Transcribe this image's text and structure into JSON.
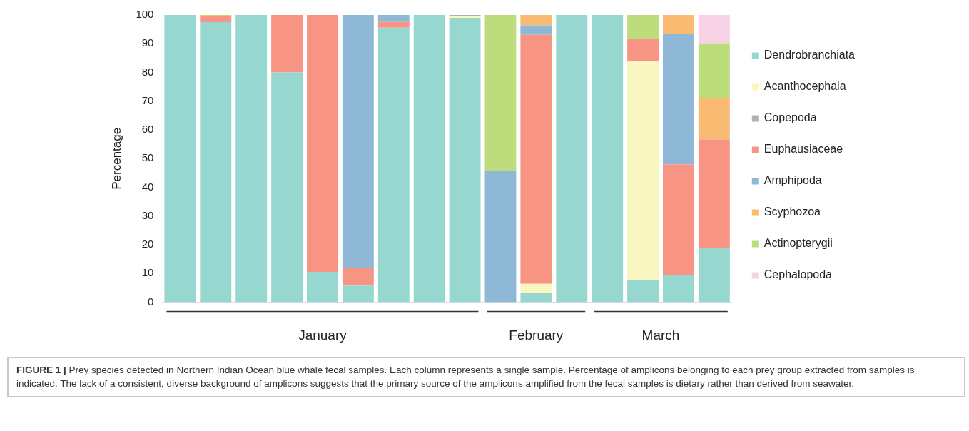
{
  "chart_data": {
    "type": "bar",
    "stacked": true,
    "ylabel": "Percentage",
    "ylim": [
      0,
      100
    ],
    "yticks": [
      0,
      10,
      20,
      30,
      40,
      50,
      60,
      70,
      80,
      90,
      100
    ],
    "grid": false,
    "legend": "right",
    "categories": [
      null,
      null,
      null,
      null,
      null,
      null,
      null,
      null,
      null,
      null,
      null,
      null,
      null,
      null,
      null,
      null
    ],
    "series": [
      {
        "name": "Dendrobranchiata",
        "color": "#96d8cf",
        "values": [
          100,
          97.5,
          100,
          80,
          10.6,
          5.8,
          95.6,
          100,
          99,
          0,
          3.2,
          100,
          100,
          7.7,
          9.4,
          18.8
        ]
      },
      {
        "name": "Acanthocephala",
        "color": "#f9f7bf",
        "values": [
          0,
          0,
          0,
          0,
          0,
          0,
          0,
          0,
          0.5,
          0,
          3.2,
          0,
          0,
          76.2,
          0,
          0
        ]
      },
      {
        "name": "Copepoda",
        "color": "#b0b0b0",
        "values": [
          0,
          0,
          0,
          0,
          0,
          0,
          0,
          0,
          0.5,
          0,
          0,
          0,
          0,
          0,
          0,
          0
        ]
      },
      {
        "name": "Euphausiaceae",
        "color": "#f89484",
        "values": [
          0,
          2,
          0,
          20,
          89.4,
          6,
          2,
          0,
          0,
          0,
          86.7,
          0,
          0,
          7.9,
          38.6,
          37.9
        ]
      },
      {
        "name": "Amphipoda",
        "color": "#8fb8d7",
        "values": [
          0,
          0,
          0,
          0,
          0,
          88.2,
          2.4,
          0,
          0,
          45.7,
          3.3,
          0,
          0,
          0,
          45.3,
          0
        ]
      },
      {
        "name": "Scyphozoa",
        "color": "#f9bb72",
        "values": [
          0,
          0,
          0,
          0,
          0,
          0,
          0,
          0,
          0,
          0,
          3.6,
          0,
          0,
          0,
          6.7,
          14.3
        ]
      },
      {
        "name": "Actinopterygii",
        "color": "#bddd7c",
        "values": [
          0,
          0.5,
          0,
          0,
          0,
          0,
          0,
          0,
          0,
          54.3,
          0,
          0,
          0,
          8.2,
          0,
          19.2
        ]
      },
      {
        "name": "Cephalopoda",
        "color": "#f7d2e4",
        "values": [
          0,
          0,
          0,
          0,
          0,
          0,
          0,
          0,
          0,
          0,
          0,
          0,
          0,
          0,
          0,
          9.8
        ]
      }
    ],
    "annotations": [
      "January",
      "February",
      "March",
      "FIGURE 1 | Prey species detected in Northern Indian Ocean blue whale fecal samples. Each column represents a single sample. Percentage of amplicons belonging to each prey group extracted from samples is indicated. The lack of a consistent, diverse background of amplicons suggests that the primary source of the amplicons amplified from the fecal samples is dietary rather than derived from seawater."
    ]
  }
}
